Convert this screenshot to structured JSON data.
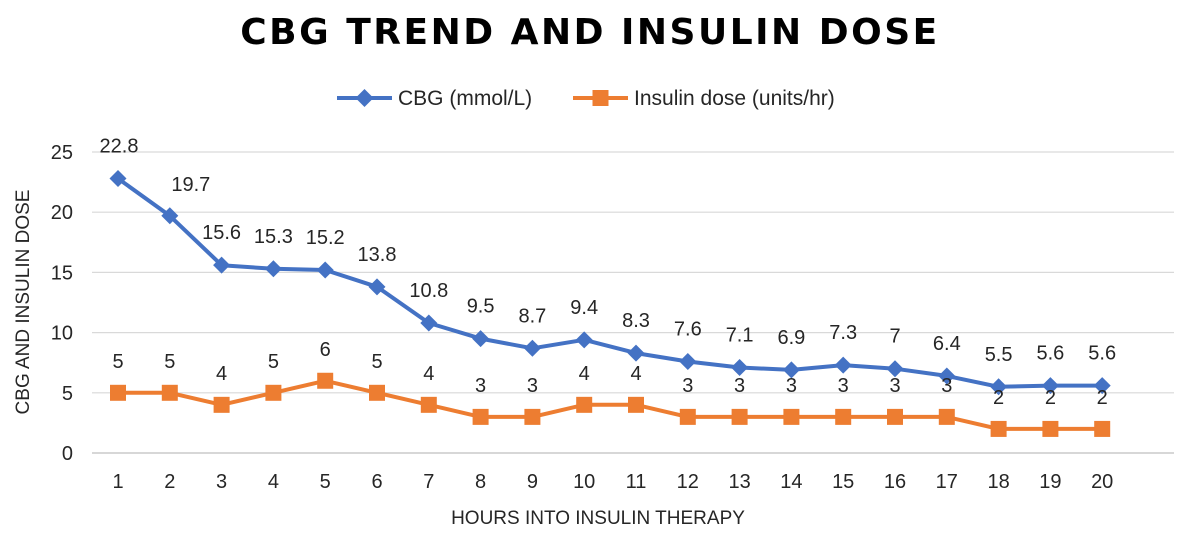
{
  "chart_data": {
    "type": "line",
    "title": "CBG TREND AND INSULIN DOSE",
    "xlabel": "HOURS INTO INSULIN THERAPY",
    "ylabel": "CBG AND INSULIN DOSE",
    "ylim": [
      0,
      25
    ],
    "yticks": [
      0,
      5,
      10,
      15,
      20,
      25
    ],
    "grid": true,
    "legend_position": "top",
    "categories": [
      "1",
      "2",
      "3",
      "4",
      "5",
      "6",
      "7",
      "8",
      "9",
      "10",
      "11",
      "12",
      "13",
      "14",
      "15",
      "16",
      "17",
      "18",
      "19",
      "20"
    ],
    "series": [
      {
        "name": "CBG (mmol/L)",
        "color": "#4472C4",
        "marker": "diamond",
        "values": [
          22.8,
          19.7,
          15.6,
          15.3,
          15.2,
          13.8,
          10.8,
          9.5,
          8.7,
          9.4,
          8.3,
          7.6,
          7.1,
          6.9,
          7.3,
          7,
          6.4,
          5.5,
          5.6,
          5.6
        ]
      },
      {
        "name": "Insulin dose (units/hr)",
        "color": "#ED7D31",
        "marker": "square",
        "values": [
          5,
          5,
          4,
          5,
          6,
          5,
          4,
          3,
          3,
          4,
          4,
          3,
          3,
          3,
          3,
          3,
          3,
          2,
          2,
          2
        ]
      }
    ]
  }
}
